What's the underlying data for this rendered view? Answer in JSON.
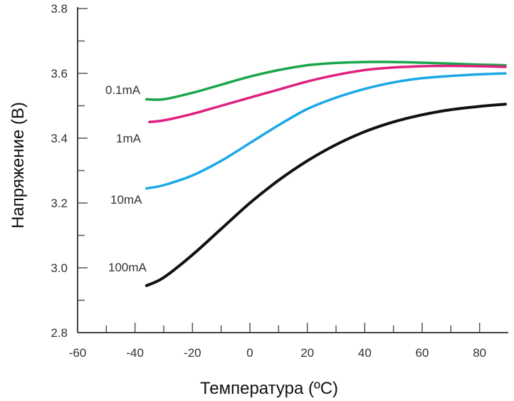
{
  "chart_data": {
    "type": "line",
    "title": "",
    "xlabel": "Температура (ºC)",
    "ylabel": "Напряжение (B)",
    "xlim": [
      -60,
      90
    ],
    "ylim": [
      2.8,
      3.8
    ],
    "x_ticks": [
      -60,
      -40,
      -20,
      0,
      20,
      40,
      60,
      80
    ],
    "x_tick_labels": [
      "-60",
      "-40",
      "-20",
      "0",
      "20",
      "40",
      "60",
      "80"
    ],
    "y_ticks": [
      2.8,
      3.0,
      3.2,
      3.4,
      3.6,
      3.8
    ],
    "y_tick_labels": [
      "2.8",
      "3.0",
      "3.2",
      "3.4",
      "3.6",
      "3.8"
    ],
    "grid": false,
    "legend": "inline labels at left end of each curve",
    "series": [
      {
        "name": "0.1mA",
        "color": "#1aa64b",
        "x": [
          -36,
          -30,
          -20,
          -10,
          0,
          10,
          20,
          30,
          40,
          50,
          60,
          70,
          80,
          89
        ],
        "y": [
          3.52,
          3.52,
          3.54,
          3.565,
          3.59,
          3.61,
          3.625,
          3.632,
          3.635,
          3.635,
          3.633,
          3.63,
          3.627,
          3.625
        ]
      },
      {
        "name": "1mA",
        "color": "#e0207e",
        "x": [
          -35,
          -30,
          -20,
          -10,
          0,
          10,
          20,
          30,
          40,
          50,
          60,
          70,
          80,
          89
        ],
        "y": [
          3.45,
          3.455,
          3.475,
          3.5,
          3.525,
          3.55,
          3.575,
          3.595,
          3.61,
          3.618,
          3.622,
          3.623,
          3.622,
          3.62
        ]
      },
      {
        "name": "10mA",
        "color": "#1aa8e6",
        "x": [
          -36,
          -30,
          -20,
          -10,
          0,
          10,
          20,
          30,
          40,
          50,
          60,
          70,
          80,
          89
        ],
        "y": [
          3.245,
          3.255,
          3.285,
          3.33,
          3.385,
          3.44,
          3.49,
          3.525,
          3.552,
          3.572,
          3.585,
          3.592,
          3.597,
          3.6
        ]
      },
      {
        "name": "100mA",
        "color": "#111111",
        "x": [
          -36,
          -30,
          -20,
          -10,
          0,
          10,
          20,
          30,
          40,
          50,
          60,
          70,
          80,
          89
        ],
        "y": [
          2.945,
          2.97,
          3.04,
          3.12,
          3.2,
          3.27,
          3.33,
          3.38,
          3.42,
          3.45,
          3.472,
          3.488,
          3.498,
          3.505
        ]
      }
    ]
  }
}
